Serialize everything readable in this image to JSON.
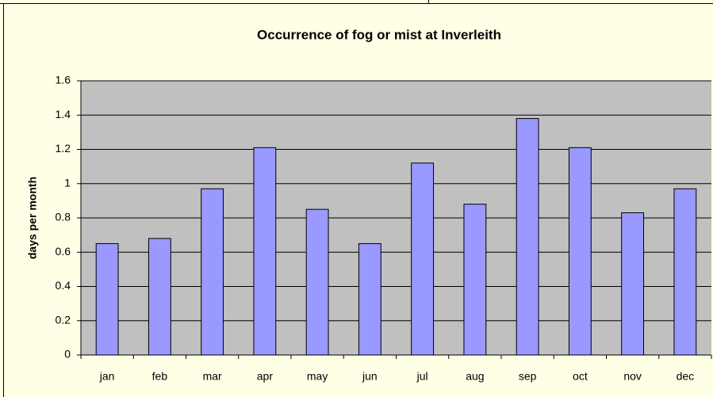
{
  "chart_data": {
    "type": "bar",
    "title": "Occurrence of  fog or mist at Inverleith",
    "y_label": "days per month",
    "categories": [
      "jan",
      "feb",
      "mar",
      "apr",
      "may",
      "jun",
      "jul",
      "aug",
      "sep",
      "oct",
      "nov",
      "dec"
    ],
    "values": [
      0.65,
      0.68,
      0.97,
      1.21,
      0.85,
      0.65,
      1.12,
      0.88,
      1.38,
      1.21,
      0.83,
      0.97
    ],
    "color": "#9999ff",
    "ylim": [
      0,
      1.6
    ],
    "yticks": [
      0,
      0.2,
      0.4,
      0.6,
      0.8,
      1,
      1.2,
      1.4,
      1.6
    ],
    "grid": true
  }
}
